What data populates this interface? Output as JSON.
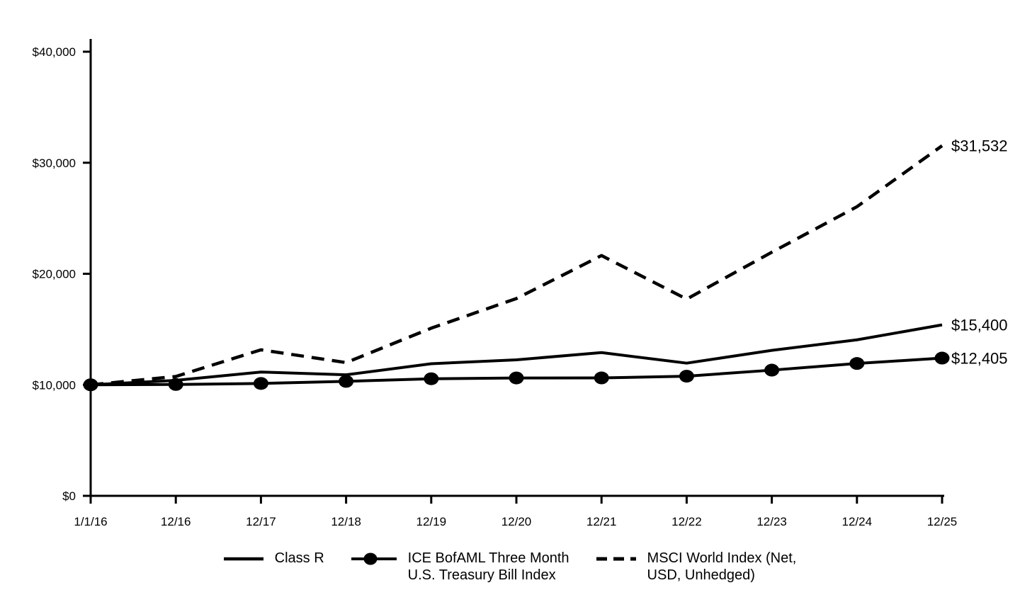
{
  "colors": {
    "line": "#000000",
    "background": "#ffffff"
  },
  "chart_data": {
    "type": "line",
    "title": "",
    "xlabel": "",
    "ylabel": "",
    "categories": [
      "1/1/16",
      "12/16",
      "12/17",
      "12/18",
      "12/19",
      "12/20",
      "12/21",
      "12/22",
      "12/23",
      "12/24",
      "12/25"
    ],
    "ylim": [
      0,
      40000
    ],
    "y_ticks": [
      {
        "value": 0,
        "label": "$0"
      },
      {
        "value": 10000,
        "label": "$10,000"
      },
      {
        "value": 20000,
        "label": "$20,000"
      },
      {
        "value": 30000,
        "label": "$30,000"
      },
      {
        "value": 40000,
        "label": "$40,000"
      }
    ],
    "grid": false,
    "legend_position": "bottom",
    "series": [
      {
        "name": "Class R",
        "style": "solid",
        "values": [
          10000,
          10400,
          11150,
          10900,
          11900,
          12250,
          12900,
          11950,
          13100,
          14050,
          15400
        ],
        "end_label": "$15,400"
      },
      {
        "name": "ICE BofAML Three Month U.S. Treasury Bill Index",
        "style": "marker",
        "values": [
          10000,
          10030,
          10120,
          10310,
          10545,
          10615,
          10620,
          10775,
          11320,
          11920,
          12405
        ],
        "end_label": "$12,405"
      },
      {
        "name": "MSCI World Index (Net, USD, Unhedged)",
        "style": "dashed",
        "values": [
          10000,
          10750,
          13150,
          12000,
          15100,
          17770,
          21640,
          17720,
          21940,
          26040,
          31532
        ],
        "end_label": "$31,532"
      }
    ]
  },
  "legend": {
    "items": [
      {
        "label": "Class R",
        "swatch": "solid-line"
      },
      {
        "label": "ICE BofAML Three Month\nU.S. Treasury Bill Index",
        "swatch": "line-with-dot"
      },
      {
        "label": "MSCI World Index (Net,\nUSD, Unhedged)",
        "swatch": "dashed-line"
      }
    ]
  }
}
